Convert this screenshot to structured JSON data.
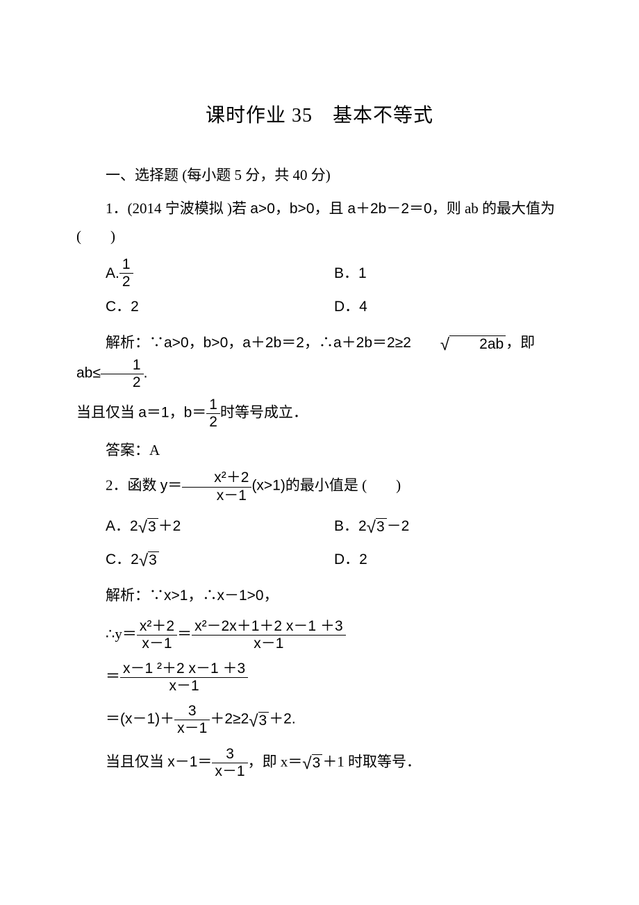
{
  "title": "课时作业 35　基本不等式",
  "section1_header": "一、选择题 (每小题 5 分，共 40 分)",
  "q1": {
    "stem_pre": "1．(2014 宁波模拟 )若 ",
    "cond": "a>0，b>0，且 a＋2b－2＝0",
    "stem_post": "，则 ab 的最大值为(　　)",
    "optA_label": "A.",
    "optA_num": "1",
    "optA_den": "2",
    "optB": "B．1",
    "optC": "C．2",
    "optD": "D．4",
    "sol_pre": "解析：∵",
    "sol_cond": "a>0，b>0，a＋2b＝2",
    "sol_mid1": "，∴",
    "sol_ineq_lhs": "a＋2b＝2≥2",
    "sol_sqrt": "2ab",
    "sol_mid2": "，即 ",
    "sol_ab": "ab≤",
    "sol_half_num": "1",
    "sol_half_den": "2",
    "sol_period": ".",
    "sol_line2_pre": "当且仅当 ",
    "sol_line2_a": "a＝1，b＝",
    "sol_line2_num": "1",
    "sol_line2_den": "2",
    "sol_line2_post": "时等号成立．",
    "answer": "答案：A"
  },
  "q2": {
    "stem_pre": "2．函数 ",
    "y_eq": "y＝",
    "frac_num": "x²＋2",
    "frac_den": "x－1",
    "cond": "(x>1)",
    "stem_post": "的最小值是 (　　)",
    "optA_pre": "A．2",
    "optA_sqrt": "3",
    "optA_post": "＋2",
    "optB_pre": "B．2",
    "optB_sqrt": "3",
    "optB_post": "－2",
    "optC_pre": "C．2",
    "optC_sqrt": "3",
    "optD": "D．2",
    "sol_l1": "解析：∵x>1，∴x－1>0，",
    "sol_l2_pre": "∴y＝",
    "sol_l2_f1_num": "x²＋2",
    "sol_l2_f1_den": "x－1",
    "sol_l2_eq": "＝",
    "sol_l2_f2_num": "x²－2x＋1＋2 x－1 ＋3",
    "sol_l2_f2_den": "x－1",
    "sol_l3_eq": "＝",
    "sol_l3_num": "x－1 ²＋2 x－1 ＋3",
    "sol_l3_den": "x－1",
    "sol_l4_pre": "＝(x－1)＋",
    "sol_l4_num": "3",
    "sol_l4_den": "x－1",
    "sol_l4_mid": "＋2≥2",
    "sol_l4_sqrt": "3",
    "sol_l4_post": "＋2.",
    "sol_l5_pre": "当且仅当 ",
    "sol_l5_lhs": "x－1＝",
    "sol_l5_num": "3",
    "sol_l5_den": "x－1",
    "sol_l5_mid": "，即 x＝",
    "sol_l5_sqrt": "3",
    "sol_l5_post": "＋1 时取等号．"
  }
}
